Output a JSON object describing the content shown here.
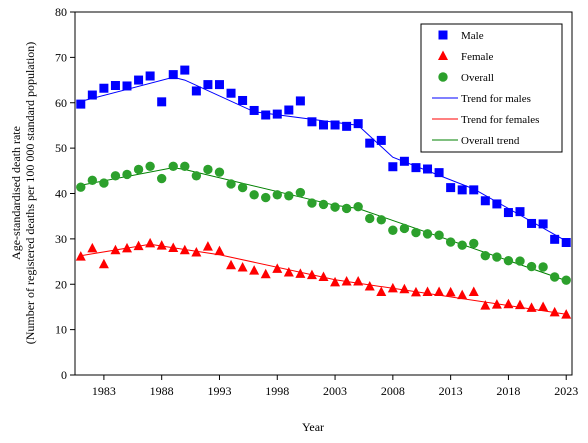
{
  "chart_data": {
    "type": "scatter",
    "title": "",
    "xlabel": "Year",
    "ylabel_line1": "Age-standardised death rate",
    "ylabel_line2": "(Number of registered deaths per 100 000 standard population)",
    "xlim": [
      1980.5,
      2023.5
    ],
    "ylim": [
      0,
      80
    ],
    "y_ticks": [
      0,
      10,
      20,
      30,
      40,
      50,
      60,
      70,
      80
    ],
    "x_ticks": [
      1983,
      1988,
      1993,
      1998,
      2003,
      2008,
      2013,
      2018,
      2023
    ],
    "grid": false,
    "legend_position": "top-right",
    "x": [
      1981,
      1982,
      1983,
      1984,
      1985,
      1986,
      1987,
      1988,
      1989,
      1990,
      1991,
      1992,
      1993,
      1994,
      1995,
      1996,
      1997,
      1998,
      1999,
      2000,
      2001,
      2002,
      2003,
      2004,
      2005,
      2006,
      2007,
      2008,
      2009,
      2010,
      2011,
      2012,
      2013,
      2014,
      2015,
      2016,
      2017,
      2018,
      2019,
      2020,
      2021,
      2022,
      2023
    ],
    "series": [
      {
        "name": "Male",
        "marker": "square",
        "color": "#0000ff",
        "values": [
          59.7,
          61.7,
          63.2,
          63.8,
          63.7,
          65.0,
          65.9,
          60.2,
          66.2,
          67.2,
          62.6,
          64.0,
          64.0,
          62.1,
          60.5,
          58.3,
          57.3,
          57.5,
          58.4,
          60.4,
          55.8,
          55.1,
          55.1,
          54.8,
          55.4,
          51.1,
          51.7,
          45.9,
          47.1,
          45.7,
          45.4,
          44.6,
          41.3,
          40.8,
          40.8,
          38.4,
          37.7,
          35.8,
          36.0,
          33.4,
          33.3,
          29.9,
          29.2
        ]
      },
      {
        "name": "Female",
        "marker": "triangle",
        "color": "#ff0000",
        "values": [
          26.1,
          27.9,
          24.4,
          27.5,
          27.9,
          28.4,
          29.0,
          28.5,
          28.0,
          27.5,
          27.0,
          28.3,
          27.3,
          24.2,
          23.7,
          23.0,
          22.2,
          23.4,
          22.6,
          22.3,
          22.0,
          21.6,
          20.4,
          20.6,
          20.6,
          19.5,
          18.3,
          19.1,
          18.9,
          18.2,
          18.3,
          18.3,
          18.2,
          17.6,
          18.3,
          15.3,
          15.5,
          15.6,
          15.4,
          14.8,
          15.0,
          13.8,
          13.3
        ]
      },
      {
        "name": "Overall",
        "marker": "circle",
        "color": "#2ca02c",
        "values": [
          41.4,
          42.9,
          42.3,
          43.9,
          44.2,
          45.3,
          46.0,
          43.3,
          46.0,
          46.0,
          43.9,
          45.3,
          44.7,
          42.1,
          41.3,
          39.7,
          39.1,
          39.7,
          39.5,
          40.2,
          37.9,
          37.6,
          37.0,
          36.7,
          37.1,
          34.5,
          34.2,
          31.9,
          32.3,
          31.4,
          31.1,
          30.8,
          29.3,
          28.6,
          29.0,
          26.3,
          26.0,
          25.2,
          25.1,
          23.9,
          23.8,
          21.6,
          20.9
        ]
      }
    ],
    "trend_lines": [
      {
        "name": "Trend for males",
        "color": "#0000ff",
        "points": [
          [
            1981,
            60.3
          ],
          [
            1989,
            65.6
          ],
          [
            1990,
            65.0
          ],
          [
            1996,
            58.0
          ],
          [
            2005,
            55.0
          ],
          [
            2008,
            48.0
          ],
          [
            2015,
            41.0
          ],
          [
            2023,
            29.5
          ]
        ]
      },
      {
        "name": "Trend for females",
        "color": "#ff0000",
        "points": [
          [
            1981,
            26.3
          ],
          [
            1987,
            28.8
          ],
          [
            1993,
            26.5
          ],
          [
            2003,
            21.0
          ],
          [
            2023,
            13.4
          ]
        ]
      },
      {
        "name": "Overall trend",
        "color": "#008000",
        "points": [
          [
            1981,
            41.8
          ],
          [
            1989,
            45.7
          ],
          [
            1990,
            45.3
          ],
          [
            2003,
            37.4
          ],
          [
            2005,
            36.7
          ],
          [
            2023,
            20.8
          ]
        ]
      }
    ],
    "legend": [
      {
        "label": "Male",
        "kind": "square",
        "color": "#0000ff"
      },
      {
        "label": "Female",
        "kind": "triangle",
        "color": "#ff0000"
      },
      {
        "label": "Overall",
        "kind": "circle",
        "color": "#2ca02c"
      },
      {
        "label": "Trend for males",
        "kind": "line",
        "color": "#0000ff"
      },
      {
        "label": "Trend for females",
        "kind": "line",
        "color": "#ff0000"
      },
      {
        "label": "Overall trend",
        "kind": "line",
        "color": "#008000"
      }
    ]
  }
}
